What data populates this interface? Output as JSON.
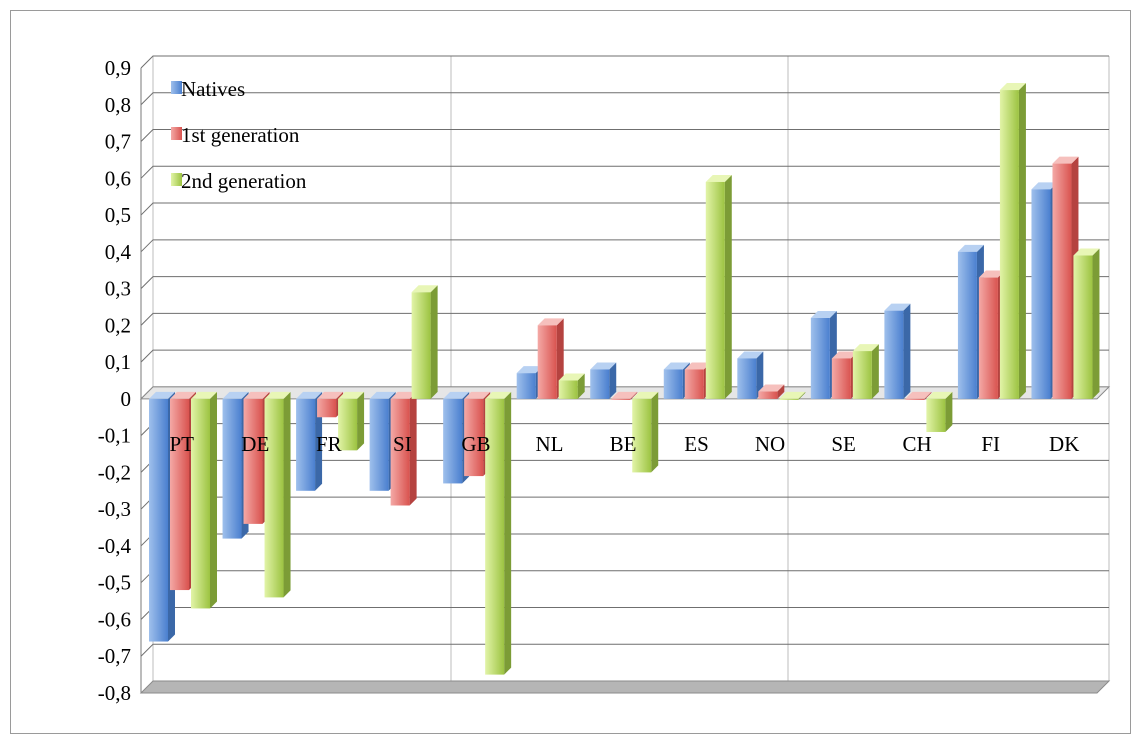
{
  "chart_data": {
    "type": "bar",
    "categories": [
      "PT",
      "DE",
      "FR",
      "SI",
      "GB",
      "NL",
      "BE",
      "ES",
      "NO",
      "SE",
      "CH",
      "FI",
      "DK"
    ],
    "series": [
      {
        "name": "Natives",
        "values": [
          -0.66,
          -0.38,
          -0.25,
          -0.25,
          -0.23,
          0.07,
          0.08,
          0.08,
          0.11,
          0.22,
          0.24,
          0.4,
          0.57
        ]
      },
      {
        "name": "1st generation",
        "values": [
          -0.52,
          -0.34,
          -0.05,
          -0.29,
          -0.21,
          0.2,
          0.0,
          0.08,
          0.02,
          0.11,
          0.0,
          0.33,
          0.64
        ]
      },
      {
        "name": "2nd generation",
        "values": [
          -0.57,
          -0.54,
          -0.14,
          0.29,
          -0.75,
          0.05,
          -0.2,
          0.59,
          0.0,
          0.13,
          -0.09,
          0.84,
          0.39
        ]
      }
    ],
    "y_ticks": [
      "0,9",
      "0,8",
      "0,7",
      "0,6",
      "0,5",
      "0,4",
      "0,3",
      "0,2",
      "0,1",
      "0",
      "-0,1",
      "-0,2",
      "-0,3",
      "-0,4",
      "-0,5",
      "-0,6",
      "-0,7",
      "-0,8"
    ],
    "ylim": [
      -0.8,
      0.9
    ],
    "grid": true,
    "legend_position": "top-left",
    "colors": {
      "Natives": "#4f81bd",
      "1st generation": "#d9534f",
      "2nd generation": "#9bbb59"
    }
  }
}
